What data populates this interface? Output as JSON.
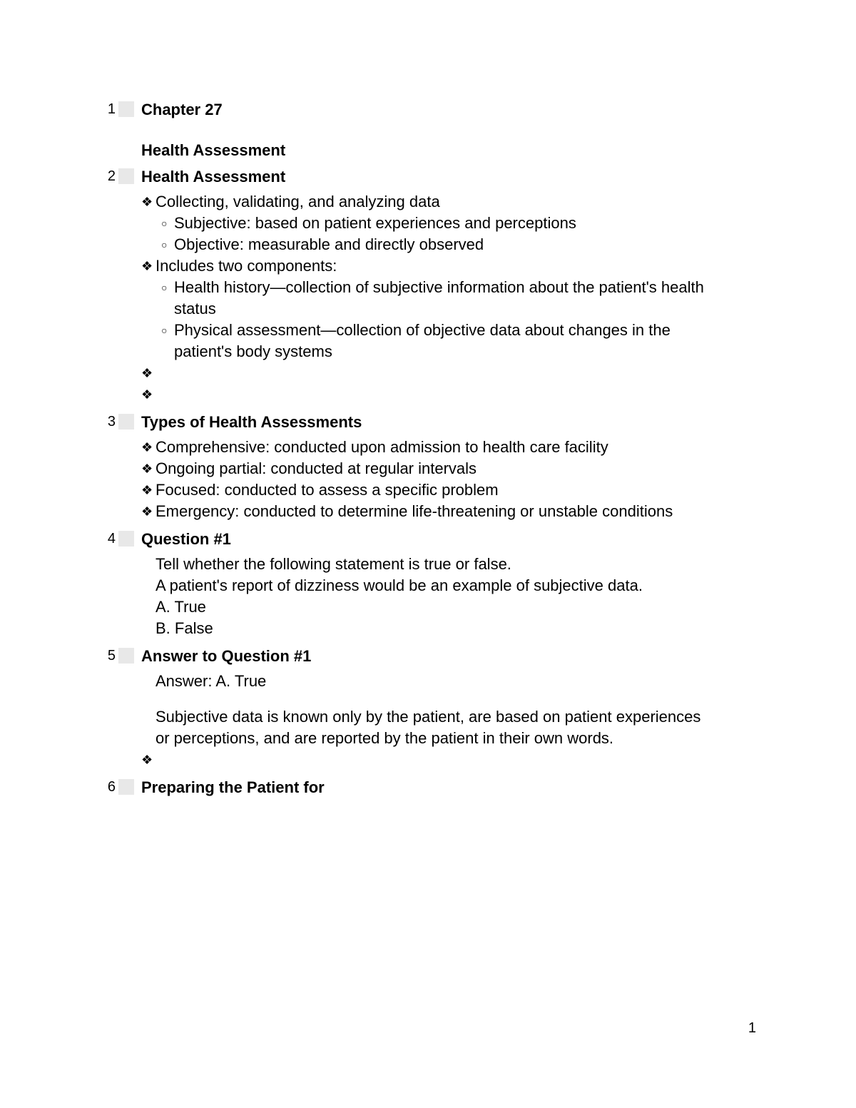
{
  "page_number": "1",
  "sections": [
    {
      "num": "1",
      "title": "Chapter 27",
      "subtitle": "Health Assessment"
    },
    {
      "num": "2",
      "title": "Health Assessment",
      "bullets": [
        {
          "text": "Collecting, validating, and analyzing data",
          "subs": [
            "Subjective: based on patient experiences and perceptions",
            "Objective: measurable and directly observed"
          ]
        },
        {
          "text": "Includes two components:",
          "subs": [
            "Health history—collection of subjective information about the patient's health status",
            "Physical assessment—collection of objective data about changes in the patient's body systems"
          ]
        },
        {
          "text": ""
        },
        {
          "text": ""
        }
      ]
    },
    {
      "num": "3",
      "title": "Types of Health Assessments",
      "bullets": [
        {
          "text": "Comprehensive: conducted upon admission to health care facility"
        },
        {
          "text": "Ongoing partial: conducted at regular intervals"
        },
        {
          "text": "Focused: conducted to assess a specific problem"
        },
        {
          "text": "Emergency: conducted to determine life-threatening or unstable conditions"
        }
      ]
    },
    {
      "num": "4",
      "title": "Question #1",
      "plain": [
        "Tell whether the following statement is true or false.",
        "A patient's report of dizziness would be an example of subjective data.",
        "A. True",
        "B. False"
      ]
    },
    {
      "num": "5",
      "title": "Answer to Question #1",
      "plain_a": [
        "Answer: A. True"
      ],
      "plain_b": [
        "Subjective data is known only by the patient, are based on patient experiences or perceptions, and are reported by the patient in their own words."
      ],
      "trailing_bullet": ""
    },
    {
      "num": "6",
      "title": "Preparing the Patient for"
    }
  ],
  "glyphs": {
    "diamond": "❖",
    "circle": "○"
  }
}
